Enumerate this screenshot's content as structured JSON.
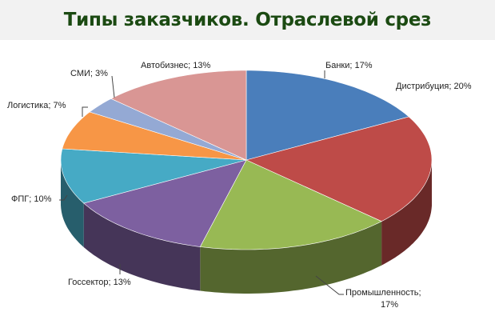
{
  "header": {
    "title": "Типы заказчиков. Отраслевой срез"
  },
  "chart_data": {
    "type": "pie",
    "title": "Типы заказчиков. Отраслевой срез",
    "style": "3d-pie",
    "start_angle": "12 o'clock, clockwise",
    "categories": [
      "Банки",
      "Дистрибуция",
      "Промышленность",
      "Госсектор",
      "ФПГ",
      "Логистика",
      "СМИ",
      "Автобизнес"
    ],
    "values": [
      17,
      20,
      17,
      13,
      10,
      7,
      3,
      13
    ],
    "unit": "%",
    "colors": [
      "#4a7ebb",
      "#be4b48",
      "#98b954",
      "#7d60a0",
      "#46aac5",
      "#f79646",
      "#94a9d4",
      "#d99694"
    ],
    "labels": [
      "Банки; 17%",
      "Дистрибуция; 20%",
      "Промышленность; 17%",
      "Госсектор; 13%",
      "ФПГ; 10%",
      "Логистика; 7%",
      "СМИ; 3%",
      "Автобизнес; 13%"
    ],
    "legend": "none (data labels on slices)"
  }
}
